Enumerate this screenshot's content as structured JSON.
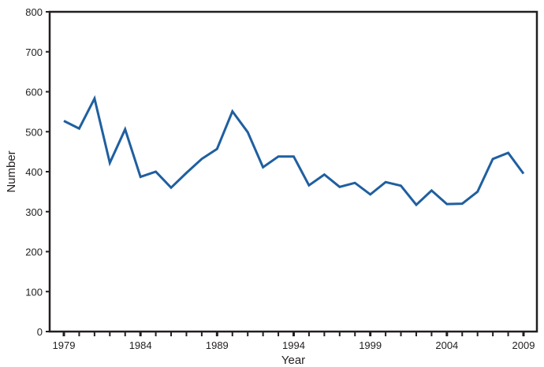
{
  "chart_data": {
    "type": "line",
    "title": "",
    "xlabel": "Year",
    "ylabel": "Number",
    "ylim": [
      0,
      800
    ],
    "xlim": [
      1979,
      2009
    ],
    "yticks": [
      0,
      100,
      200,
      300,
      400,
      500,
      600,
      700,
      800
    ],
    "xtick_labels": [
      "1979",
      "1984",
      "1989",
      "1994",
      "1999",
      "2004",
      "2009"
    ],
    "grid": false,
    "legend": null,
    "series": [
      {
        "name": "Number",
        "color": "#1f5fa0",
        "x": [
          1979,
          1980,
          1981,
          1982,
          1983,
          1984,
          1985,
          1986,
          1987,
          1988,
          1989,
          1990,
          1991,
          1992,
          1993,
          1994,
          1995,
          1996,
          1997,
          1998,
          1999,
          2000,
          2001,
          2002,
          2003,
          2004,
          2005,
          2006,
          2007,
          2008,
          2009
        ],
        "values": [
          527,
          508,
          583,
          422,
          506,
          387,
          400,
          360,
          397,
          432,
          457,
          551,
          499,
          411,
          438,
          438,
          366,
          393,
          362,
          372,
          343,
          374,
          365,
          317,
          353,
          319,
          320,
          350,
          432,
          447,
          395
        ]
      }
    ]
  },
  "colors": {
    "line": "#1f5fa0",
    "axis": "#231f20"
  }
}
